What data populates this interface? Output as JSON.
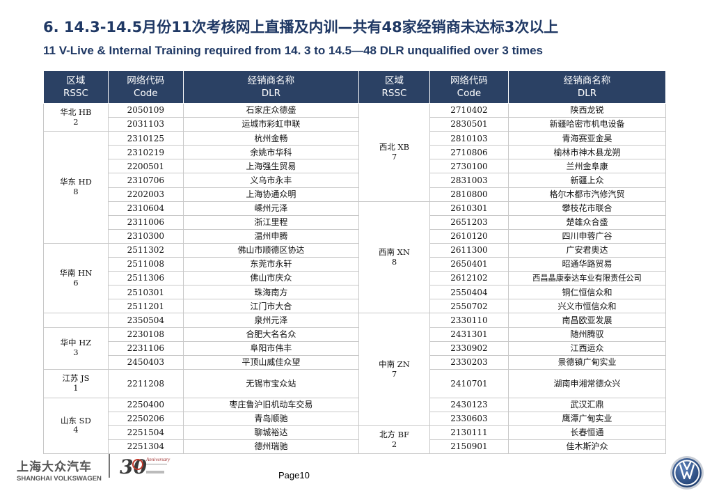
{
  "title_zh": "6. 14.3-14.5月份11次考核网上直播及内训—共有48家经销商未达标3次以上",
  "title_en": "11 V-Live & Internal Training required from 14. 3 to 14.5—48 DLR unqualified over 3 times",
  "headers": {
    "region": {
      "zh": "区域",
      "en": "RSSC"
    },
    "code": {
      "zh": "网络代码",
      "en": "Code"
    },
    "dealer": {
      "zh": "经销商名称",
      "en": "DLR"
    }
  },
  "left_regions": [
    {
      "line1": "华北 HB",
      "line2": "2"
    },
    {
      "line1": "华东 HD",
      "line2": "8"
    },
    {
      "line1": "华南 HN",
      "line2": "6"
    },
    {
      "line1": "华中 HZ",
      "line2": "3"
    },
    {
      "line1": "江苏 JS",
      "line2": "1"
    },
    {
      "line1": "山东 SD",
      "line2": "4"
    }
  ],
  "right_regions": [
    {
      "line1": "西北 XB",
      "line2": "7"
    },
    {
      "line1": "西南 XN",
      "line2": "8"
    },
    {
      "line1": "中南 ZN",
      "line2": "7"
    },
    {
      "line1": "北方 BF",
      "line2": "2"
    }
  ],
  "rows": [
    {
      "lcode": "2050109",
      "ldlr": "石家庄众德盛",
      "rcode": "2710402",
      "rdlr": "陕西龙锐"
    },
    {
      "lcode": "2031103",
      "ldlr": "运城市彩虹申联",
      "rcode": "2830501",
      "rdlr": "新疆哈密市机电设备"
    },
    {
      "lcode": "2310125",
      "ldlr": "杭州金畅",
      "rcode": "2810103",
      "rdlr": "青海赛亚金昊"
    },
    {
      "lcode": "2310219",
      "ldlr": "余姚市华科",
      "rcode": "2710806",
      "rdlr": "榆林市神木县龙朔"
    },
    {
      "lcode": "2200501",
      "ldlr": "上海强生贸易",
      "rcode": "2730100",
      "rdlr": "兰州金阜康"
    },
    {
      "lcode": "2310706",
      "ldlr": "义乌市永丰",
      "rcode": "2831003",
      "rdlr": "新疆上众"
    },
    {
      "lcode": "2202003",
      "ldlr": "上海协通众明",
      "rcode": "2810800",
      "rdlr": "格尔木都市汽修汽贸"
    },
    {
      "lcode": "2310604",
      "ldlr": "嵊州元泽",
      "rcode": "2610301",
      "rdlr": "攀枝花市联合"
    },
    {
      "lcode": "2311006",
      "ldlr": "浙江里程",
      "rcode": "2651203",
      "rdlr": "楚雄众合盛"
    },
    {
      "lcode": "2310300",
      "ldlr": "温州申腾",
      "rcode": "2610120",
      "rdlr": "四川申蓉广谷"
    },
    {
      "lcode": "2511302",
      "ldlr": "佛山市顺德区协达",
      "rcode": "2611300",
      "rdlr": "广安君奥达"
    },
    {
      "lcode": "2511008",
      "ldlr": "东莞市永轩",
      "rcode": "2650401",
      "rdlr": "昭通华路贸易"
    },
    {
      "lcode": "2511306",
      "ldlr": "佛山市庆众",
      "rcode": "2612102",
      "rdlr": "西昌晶康泰达车业有限责任公司"
    },
    {
      "lcode": "2510301",
      "ldlr": "珠海南方",
      "rcode": "2550404",
      "rdlr": "铜仁恒信众和"
    },
    {
      "lcode": "2511201",
      "ldlr": "江门市大合",
      "rcode": "2550702",
      "rdlr": "兴义市恒信众和"
    },
    {
      "lcode": "2350504",
      "ldlr": "泉州元泽",
      "rcode": "2330110",
      "rdlr": "南昌欧亚发展"
    },
    {
      "lcode": "2230108",
      "ldlr": "合肥大名名众",
      "rcode": "2431301",
      "rdlr": "随州腾驭"
    },
    {
      "lcode": "2231106",
      "ldlr": "阜阳市伟丰",
      "rcode": "2330902",
      "rdlr": "江西运众"
    },
    {
      "lcode": "2450403",
      "ldlr": "平顶山威佳众望",
      "rcode": "2330203",
      "rdlr": "景德镇广甸实业"
    },
    {
      "lcode": "2211208",
      "ldlr": "无锡市宝众站",
      "rcode": "2410701",
      "rdlr": "湖南申湘常德众兴"
    },
    {
      "lcode": "2250400",
      "ldlr": "枣庄鲁沪旧机动车交易",
      "rcode": "2430123",
      "rdlr": "武汉汇鼎"
    },
    {
      "lcode": "2250206",
      "ldlr": "青岛顺驰",
      "rcode": "2330603",
      "rdlr": "鹰潭广甸实业"
    },
    {
      "lcode": "2251504",
      "ldlr": "聊城裕达",
      "rcode": "2130111",
      "rdlr": "长春恒通"
    },
    {
      "lcode": "2251304",
      "ldlr": "德州瑞驰",
      "rcode": "2150901",
      "rdlr": "佳木斯沪众"
    }
  ],
  "footer": {
    "brand_zh": "上海大众汽车",
    "brand_en": "SHANGHAI VOLKSWAGEN",
    "anniversary_number": "30",
    "anniversary_word": "Anniversary",
    "page": "Page10"
  }
}
